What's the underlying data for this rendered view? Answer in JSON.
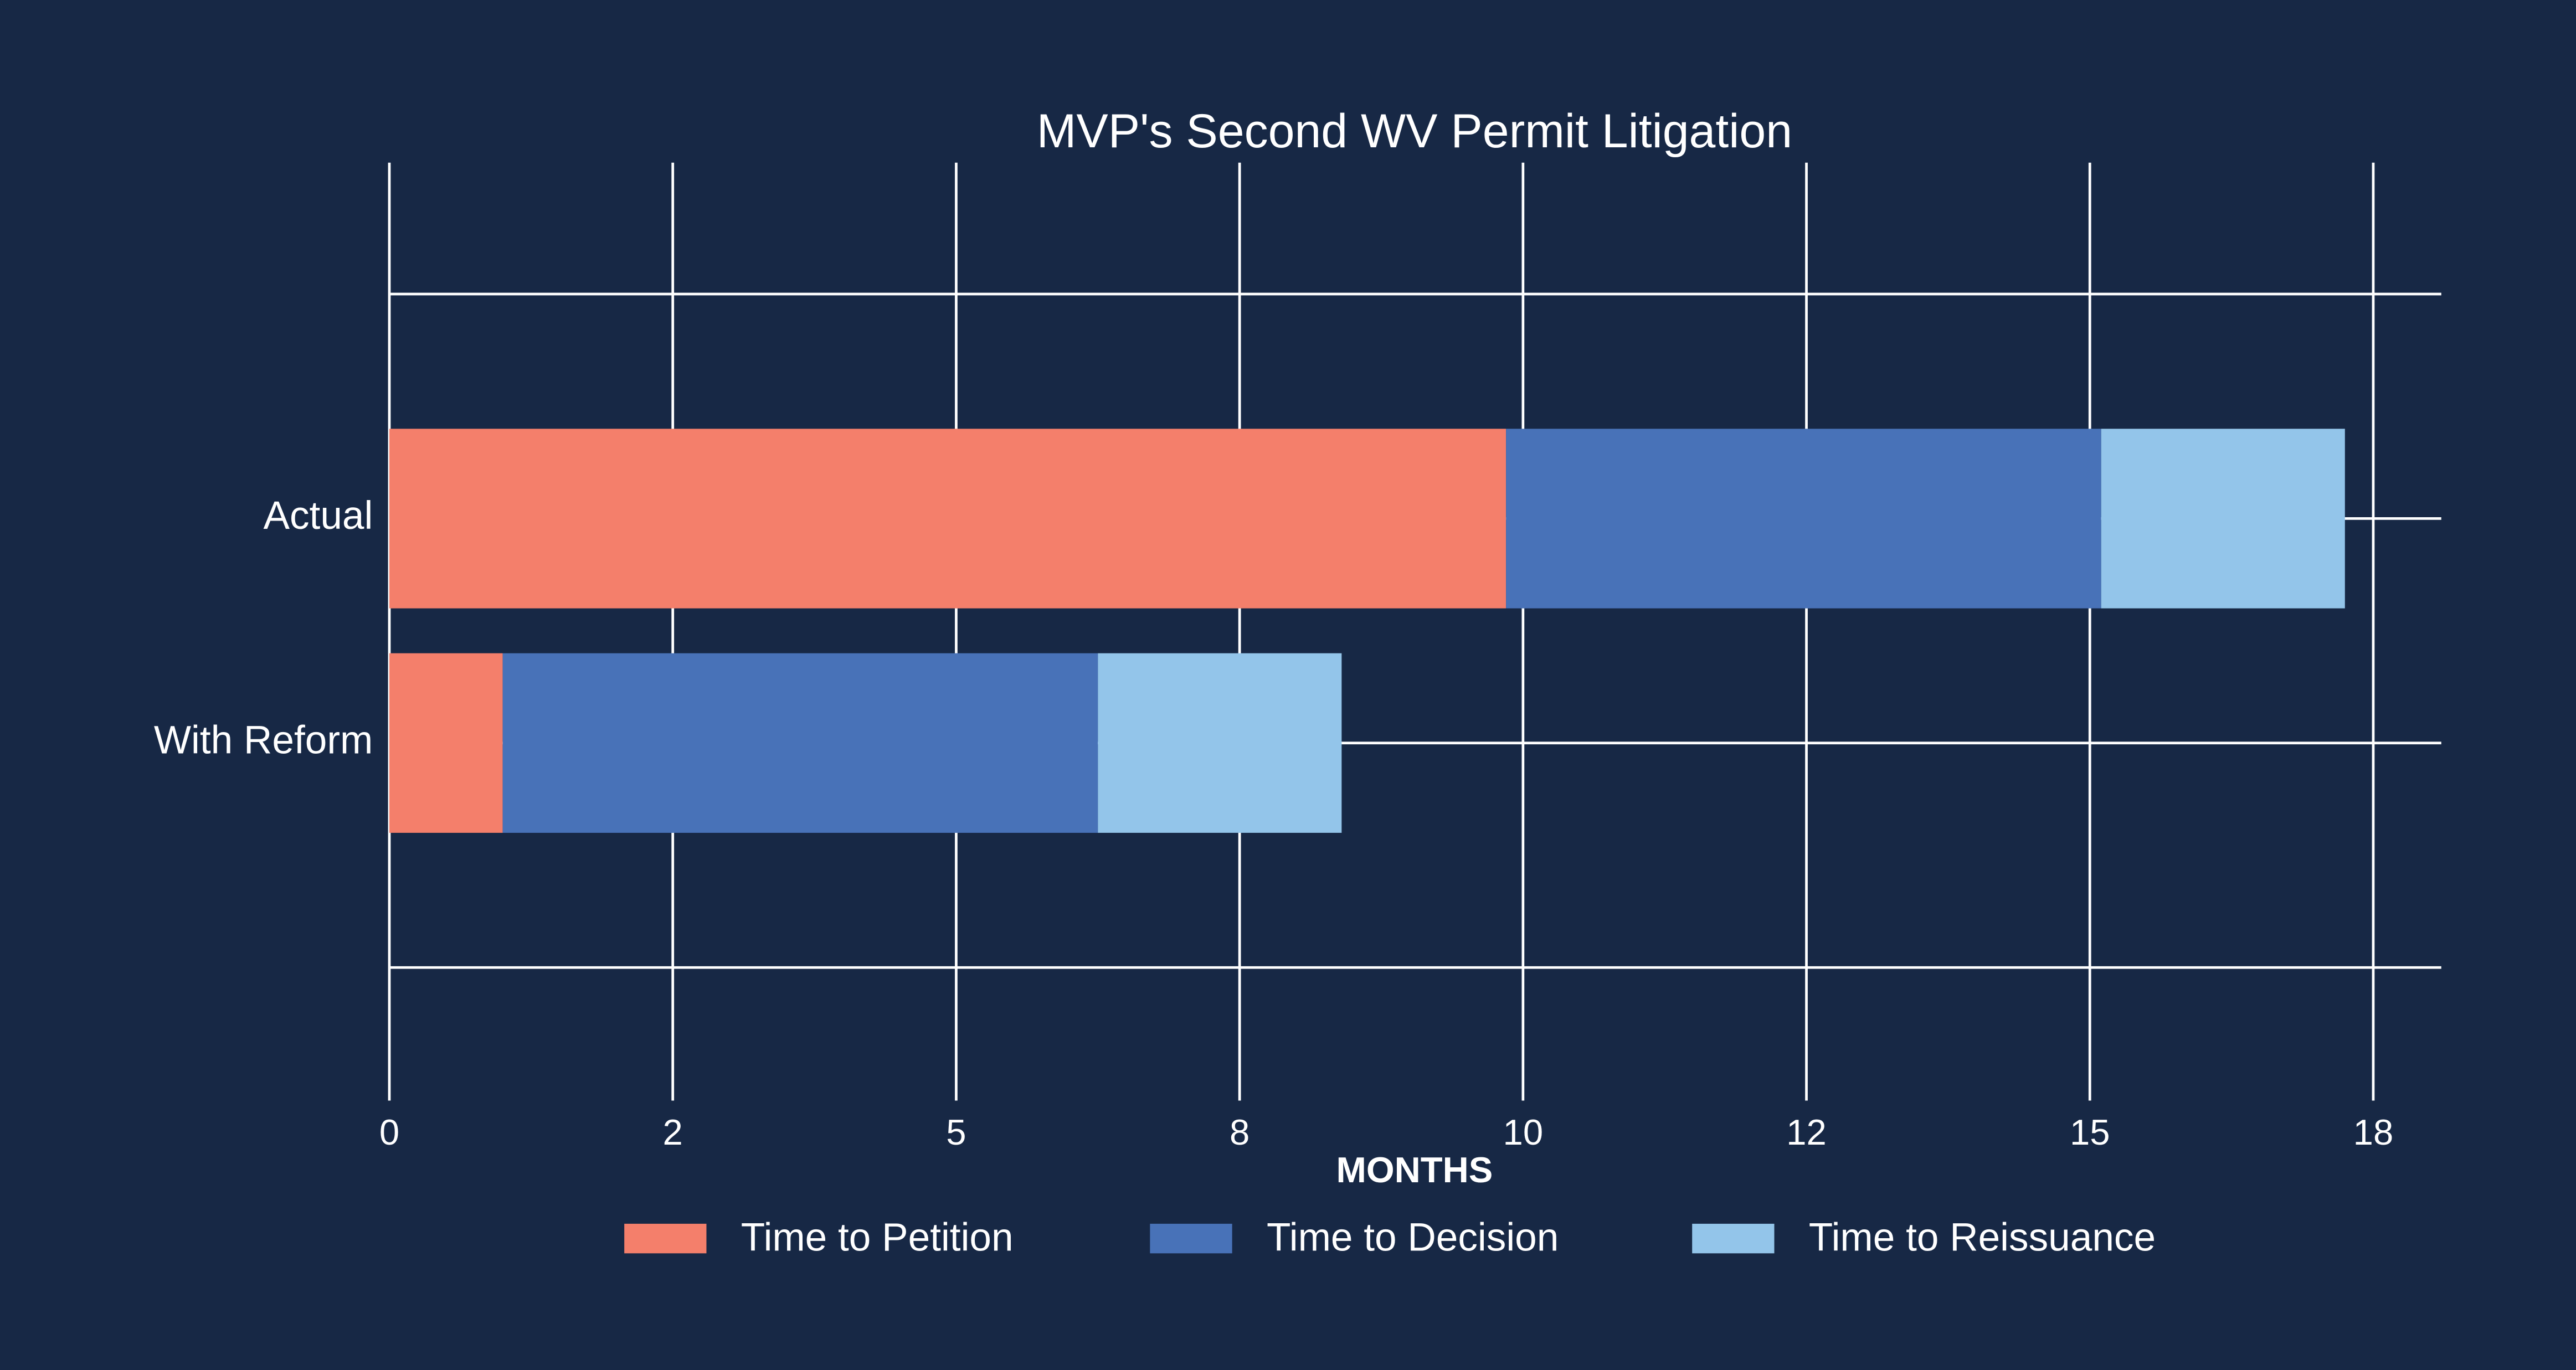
{
  "chart_data": {
    "type": "stacked-barh",
    "title": "MVP's Second WV Permit Litigation",
    "xlabel": "MONTHS",
    "categories": [
      "Actual",
      "With Reform"
    ],
    "series": [
      {
        "name": "Time to Petition",
        "color": "#f47f6b",
        "values": [
          9.85,
          1.0
        ]
      },
      {
        "name": "Time to Decision",
        "color": "#4872b8",
        "values": [
          5.25,
          5.25
        ]
      },
      {
        "name": "Time to Reissuance",
        "color": "#93c5ea",
        "values": [
          2.15,
          2.15
        ]
      }
    ],
    "xlim": [
      0,
      18.1
    ],
    "xticks": [
      0,
      {
        "value": 2.5,
        "label": "2"
      },
      5,
      {
        "value": 7.5,
        "label": "8"
      },
      10,
      {
        "value": 12.5,
        "label": "12"
      },
      15,
      {
        "value": 17.5,
        "label": "18"
      }
    ],
    "grid": true,
    "legend": "bottom"
  }
}
